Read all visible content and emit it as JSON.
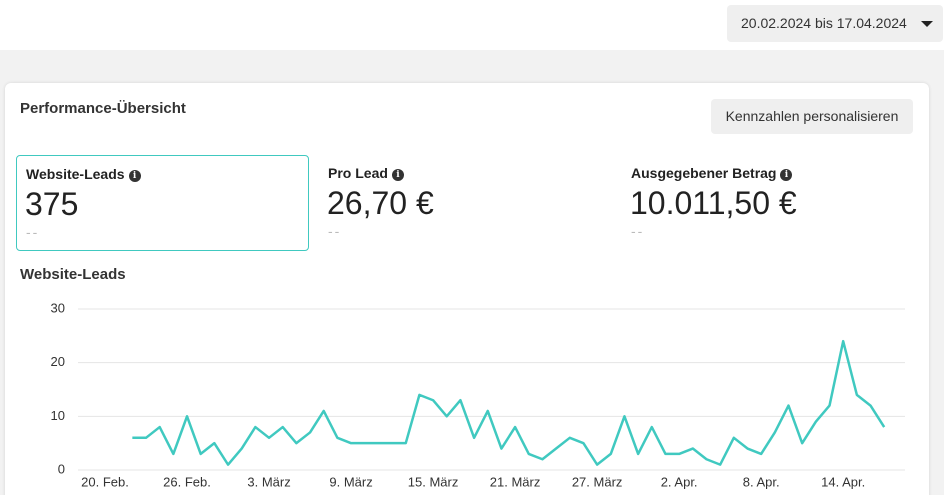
{
  "header": {
    "date_range": "20.02.2024 bis 17.04.2024"
  },
  "card": {
    "title": "Performance-Übersicht",
    "button": "Kennzahlen personalisieren",
    "kpis": [
      {
        "label": "Website-Leads",
        "value": "375",
        "change": "--"
      },
      {
        "label": "Pro Lead",
        "value": "26,70 €",
        "change": "--"
      },
      {
        "label": "Ausgegebener Betrag",
        "value": "10.011,50 €",
        "change": "--"
      }
    ]
  },
  "chart_data": {
    "type": "line",
    "title": "Website-Leads",
    "categories": [
      "20. Feb.",
      null,
      null,
      null,
      null,
      null,
      "26. Feb.",
      null,
      null,
      null,
      null,
      null,
      "3. März",
      null,
      null,
      null,
      null,
      null,
      "9. März",
      null,
      null,
      null,
      null,
      null,
      "15. März",
      null,
      null,
      null,
      null,
      null,
      "21. März",
      null,
      null,
      null,
      null,
      null,
      "27. März",
      null,
      null,
      null,
      null,
      null,
      "2. Apr.",
      null,
      null,
      null,
      null,
      null,
      "8. Apr.",
      null,
      null,
      null,
      null,
      null,
      "14. Apr.",
      null,
      null,
      null
    ],
    "series": [
      {
        "name": "Website-Leads",
        "color": "#40c9c0",
        "values": [
          null,
          null,
          6,
          6,
          8,
          3,
          10,
          3,
          5,
          1,
          4,
          8,
          6,
          8,
          5,
          7,
          11,
          6,
          5,
          5,
          5,
          5,
          5,
          14,
          13,
          10,
          13,
          6,
          11,
          4,
          8,
          3,
          2,
          4,
          6,
          5,
          1,
          3,
          10,
          3,
          8,
          3,
          3,
          4,
          2,
          1,
          6,
          4,
          3,
          7,
          12,
          5,
          9,
          12,
          24,
          14,
          12,
          8
        ]
      }
    ],
    "ylim": [
      0,
      30
    ],
    "yticks": [
      0,
      10,
      20,
      30
    ],
    "grid": true
  }
}
